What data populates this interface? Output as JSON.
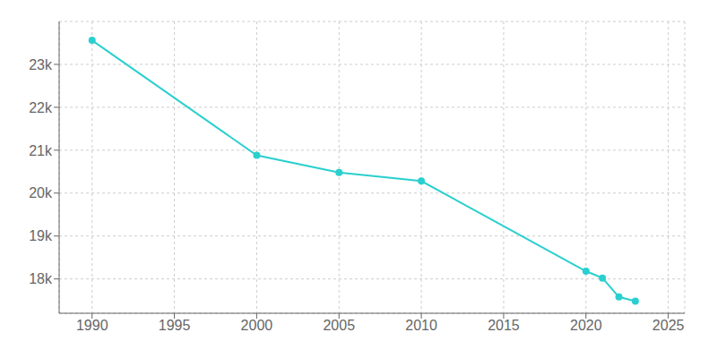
{
  "chart_data": {
    "type": "line",
    "x": [
      1990,
      2000,
      2005,
      2010,
      2020,
      2021,
      2022,
      2023
    ],
    "values": [
      23560,
      20880,
      20480,
      20280,
      18180,
      18020,
      17580,
      17480
    ],
    "color": "#2acfcf",
    "marker": "circle",
    "xlim": [
      1988,
      2026
    ],
    "xticks": [
      1990,
      1995,
      2000,
      2005,
      2010,
      2015,
      2020,
      2025
    ],
    "ylim": [
      17200,
      24000
    ],
    "yticks": [
      {
        "value": 18000,
        "label": "18k"
      },
      {
        "value": 19000,
        "label": "19k"
      },
      {
        "value": 20000,
        "label": "20k"
      },
      {
        "value": 21000,
        "label": "21k"
      },
      {
        "value": 22000,
        "label": "22k"
      },
      {
        "value": 23000,
        "label": "23k"
      }
    ],
    "grid": true
  }
}
